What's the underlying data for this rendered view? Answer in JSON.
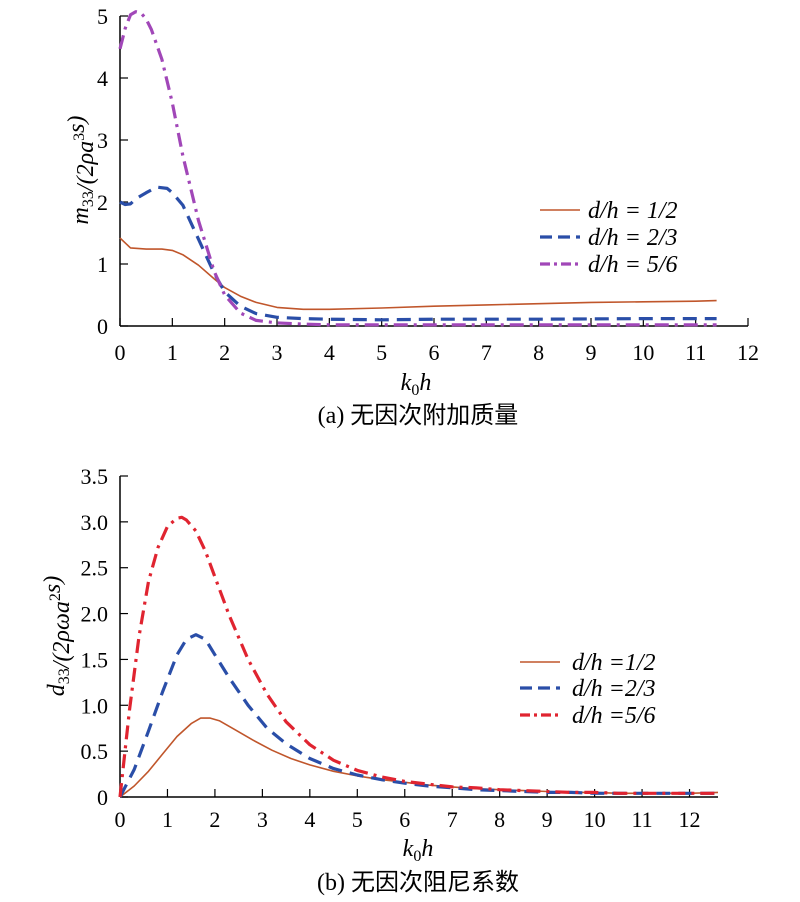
{
  "chart_data": [
    {
      "type": "line",
      "caption": "(a) 无因次附加质量",
      "xlabel": "k0h",
      "ylabel": "m33/(2ρa3s)",
      "xlim": [
        0,
        12
      ],
      "ylim": [
        0,
        5
      ],
      "x_ticks": [
        "0",
        "1",
        "2",
        "3",
        "4",
        "5",
        "6",
        "7",
        "8",
        "9",
        "10",
        "11",
        "12"
      ],
      "y_ticks": [
        "0",
        "1",
        "2",
        "3",
        "4",
        "5"
      ],
      "grid": false,
      "legend_position": "right",
      "series": [
        {
          "name": "d/h = 1/2",
          "color": "#c0562b",
          "style": "solid",
          "x": [
            0,
            0.2,
            0.5,
            0.8,
            1.0,
            1.2,
            1.5,
            1.8,
            2.0,
            2.3,
            2.6,
            3.0,
            3.5,
            4.0,
            5.0,
            6.0,
            7.0,
            8.0,
            9.0,
            10.0,
            11.0,
            11.4
          ],
          "y": [
            1.42,
            1.26,
            1.24,
            1.24,
            1.22,
            1.15,
            0.98,
            0.76,
            0.62,
            0.48,
            0.38,
            0.3,
            0.27,
            0.27,
            0.29,
            0.32,
            0.34,
            0.36,
            0.38,
            0.39,
            0.4,
            0.41
          ]
        },
        {
          "name": "d/h = 2/3",
          "color": "#2a4ea8",
          "style": "dashed",
          "x": [
            0,
            0.1,
            0.2,
            0.3,
            0.5,
            0.7,
            0.9,
            1.0,
            1.2,
            1.5,
            1.8,
            2.0,
            2.3,
            2.6,
            3.0,
            3.5,
            4.0,
            5.0,
            6.0,
            8.0,
            10.0,
            11.4
          ],
          "y": [
            2.0,
            1.96,
            1.97,
            2.05,
            2.15,
            2.24,
            2.22,
            2.15,
            1.95,
            1.4,
            0.85,
            0.55,
            0.32,
            0.2,
            0.14,
            0.12,
            0.11,
            0.1,
            0.11,
            0.11,
            0.12,
            0.12
          ]
        },
        {
          "name": "d/h = 5/6",
          "color": "#a147b8",
          "style": "dashdot",
          "x": [
            0,
            0.1,
            0.2,
            0.3,
            0.4,
            0.5,
            0.6,
            0.8,
            1.0,
            1.2,
            1.5,
            1.8,
            2.0,
            2.3,
            2.6,
            3.0,
            3.5,
            4.0,
            5.0,
            6.0,
            8.0,
            10.0,
            11.4
          ],
          "y": [
            4.47,
            4.8,
            5.02,
            5.07,
            5.05,
            4.95,
            4.78,
            4.3,
            3.6,
            2.75,
            1.7,
            0.88,
            0.5,
            0.21,
            0.09,
            0.05,
            0.03,
            0.02,
            0.02,
            0.02,
            0.02,
            0.02,
            0.02
          ]
        }
      ]
    },
    {
      "type": "line",
      "caption": "(b) 无因次阻尼系数",
      "xlabel": "k0h",
      "ylabel": "d33/(2ρωa2s)",
      "xlim": [
        0,
        12.6
      ],
      "ylim": [
        0,
        3.5
      ],
      "x_ticks": [
        "0",
        "1",
        "2",
        "3",
        "4",
        "5",
        "6",
        "7",
        "8",
        "9",
        "10",
        "11",
        "12"
      ],
      "y_ticks": [
        "0",
        "0.5",
        "1.0",
        "1.5",
        "2.0",
        "2.5",
        "3.0",
        "3.5"
      ],
      "grid": false,
      "legend_position": "right",
      "series": [
        {
          "name": "d/h =1/2",
          "color": "#c0562b",
          "style": "solid",
          "x": [
            0,
            0.3,
            0.6,
            0.9,
            1.2,
            1.5,
            1.7,
            1.9,
            2.1,
            2.4,
            2.8,
            3.2,
            3.6,
            4.0,
            4.5,
            5.0,
            5.5,
            6.0,
            6.5,
            7.0,
            7.5,
            8.0,
            8.5,
            9.0,
            9.5,
            10.0,
            10.5,
            11.0,
            11.5,
            12.0,
            12.6
          ],
          "y": [
            0,
            0.12,
            0.28,
            0.47,
            0.66,
            0.8,
            0.86,
            0.86,
            0.83,
            0.74,
            0.62,
            0.51,
            0.42,
            0.35,
            0.28,
            0.23,
            0.19,
            0.16,
            0.13,
            0.11,
            0.09,
            0.08,
            0.07,
            0.06,
            0.05,
            0.05,
            0.04,
            0.04,
            0.04,
            0.04,
            0.05
          ]
        },
        {
          "name": "d/h =2/3",
          "color": "#2a4ea8",
          "style": "dashed",
          "x": [
            0,
            0.3,
            0.6,
            0.9,
            1.2,
            1.4,
            1.6,
            1.8,
            2.0,
            2.3,
            2.7,
            3.1,
            3.5,
            4.0,
            4.5,
            5.0,
            5.5,
            6.0,
            6.5,
            7.0,
            7.5,
            8.0,
            8.5,
            9.0,
            9.5,
            10.0,
            10.5,
            11.0,
            11.5,
            12.0,
            12.6
          ],
          "y": [
            0,
            0.3,
            0.72,
            1.15,
            1.55,
            1.72,
            1.77,
            1.72,
            1.55,
            1.3,
            1.0,
            0.75,
            0.58,
            0.42,
            0.31,
            0.24,
            0.19,
            0.15,
            0.12,
            0.1,
            0.08,
            0.07,
            0.06,
            0.05,
            0.05,
            0.04,
            0.04,
            0.04,
            0.04,
            0.04,
            0.04
          ]
        },
        {
          "name": "d/h =5/6",
          "color": "#e02430",
          "style": "dashdot",
          "x": [
            0,
            0.2,
            0.4,
            0.6,
            0.8,
            1.0,
            1.2,
            1.3,
            1.4,
            1.6,
            1.8,
            2.0,
            2.3,
            2.7,
            3.1,
            3.5,
            4.0,
            4.5,
            5.0,
            5.5,
            6.0,
            6.5,
            7.0,
            7.5,
            8.0,
            8.5,
            9.0,
            9.5,
            10.0,
            10.5,
            11.0,
            11.5,
            12.0,
            12.6
          ],
          "y": [
            0,
            0.95,
            1.75,
            2.35,
            2.72,
            2.95,
            3.04,
            3.05,
            3.02,
            2.9,
            2.68,
            2.4,
            1.98,
            1.5,
            1.12,
            0.82,
            0.57,
            0.4,
            0.29,
            0.22,
            0.17,
            0.14,
            0.11,
            0.1,
            0.08,
            0.07,
            0.06,
            0.05,
            0.05,
            0.04,
            0.04,
            0.04,
            0.04,
            0.04
          ]
        }
      ]
    }
  ]
}
